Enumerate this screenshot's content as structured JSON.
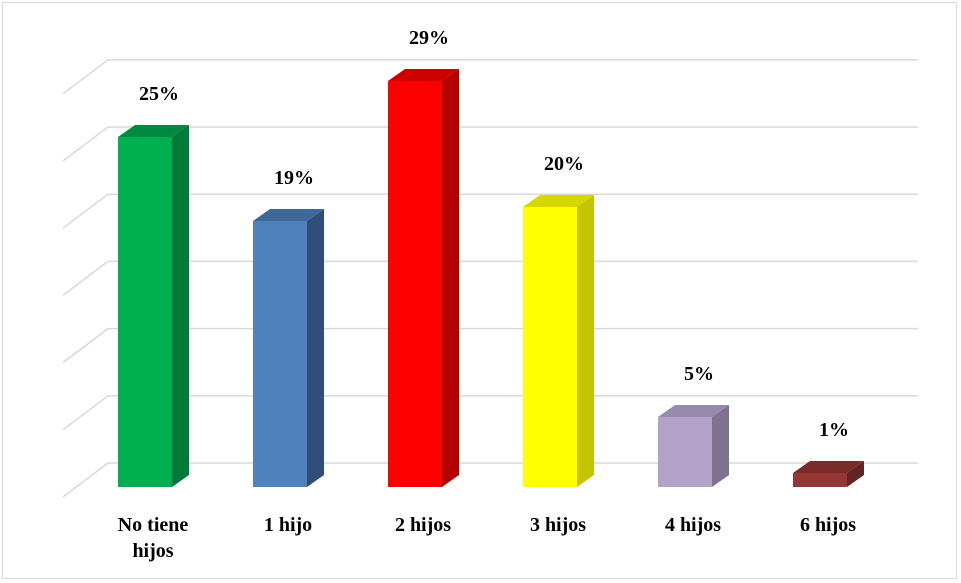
{
  "chart_data": {
    "type": "bar",
    "style": "3d-clustered-column",
    "categories": [
      {
        "lines": [
          "No tiene",
          "hijos"
        ]
      },
      {
        "lines": [
          "1 hijo"
        ]
      },
      {
        "lines": [
          "2 hijos"
        ]
      },
      {
        "lines": [
          "3 hijos"
        ]
      },
      {
        "lines": [
          "4 hijos"
        ]
      },
      {
        "lines": [
          "6 hijos"
        ]
      }
    ],
    "values": [
      25,
      19,
      29,
      20,
      5,
      1
    ],
    "data_labels": [
      "25%",
      "19%",
      "29%",
      "20%",
      "5%",
      "1%"
    ],
    "unit": "%",
    "ylim": [
      0,
      30
    ],
    "y_tick_step": 5,
    "gridlines": true,
    "legend": "none",
    "colors": [
      {
        "front": "#00b050",
        "side": "#007a38",
        "top": "#00893f"
      },
      {
        "front": "#4f81bd",
        "side": "#2f4f79",
        "top": "#3f6898"
      },
      {
        "front": "#ff0000",
        "side": "#b30000",
        "top": "#cc0000"
      },
      {
        "front": "#ffff00",
        "side": "#c4c400",
        "top": "#d6d600"
      },
      {
        "front": "#b3a2c7",
        "side": "#7e7192",
        "top": "#978aab"
      },
      {
        "front": "#953735",
        "side": "#632423",
        "top": "#7a2c2b"
      }
    ],
    "gridline_color": "#d9d9d9"
  }
}
